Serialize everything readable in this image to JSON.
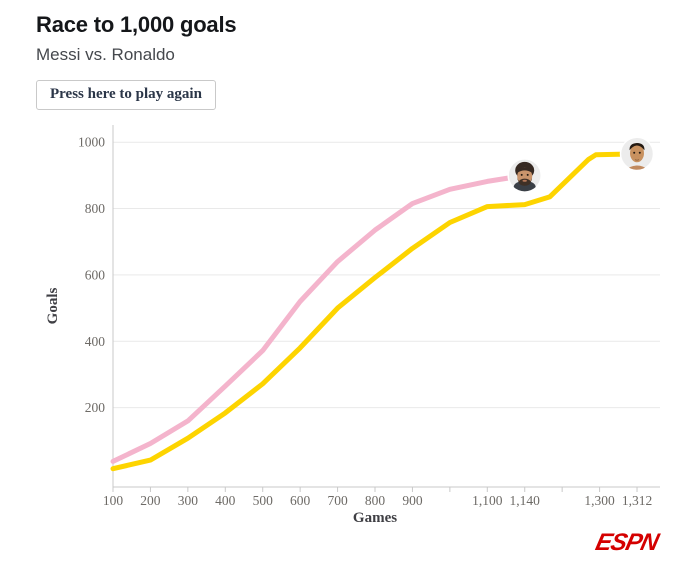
{
  "header": {
    "title": "Race to 1,000 goals",
    "subtitle": "Messi vs. Ronaldo"
  },
  "controls": {
    "play_again_label": "Press here to play again"
  },
  "footer": {
    "logo_text": "ESPN"
  },
  "chart_data": {
    "type": "line",
    "title": "Race to 1,000 goals",
    "xlabel": "Games",
    "ylabel": "Goals",
    "x_tick_values": [
      100,
      200,
      300,
      400,
      500,
      600,
      700,
      800,
      900,
      1000,
      1100,
      1140,
      1200,
      1300,
      1312
    ],
    "x_tick_labels": [
      "100",
      "200",
      "300",
      "400",
      "500",
      "600",
      "700",
      "800",
      "900",
      "",
      "1,100",
      "1,140",
      "",
      "1,300",
      "1,312"
    ],
    "y_ticks": [
      200,
      400,
      600,
      800,
      1000
    ],
    "y_tick_labels": [
      "200",
      "400",
      "600",
      "800",
      "1000"
    ],
    "xlim": [
      100,
      1312
    ],
    "ylim": [
      0,
      1050
    ],
    "grid": "horizontal-only",
    "legend": "none",
    "colors": {
      "messi_line": "#f4b4cc",
      "ronaldo_line": "#fdd400",
      "grid": "#e9e9e9",
      "axis": "#c9c9c9",
      "tick_text": "#6d6a66",
      "axis_label_text": "#3f3f44",
      "logo_red": "#d40000"
    },
    "series": [
      {
        "name": "Messi",
        "color_key": "messi_line",
        "avatar": "messi-avatar",
        "final_games": 1140,
        "final_goals": 900,
        "points": [
          [
            100,
            38
          ],
          [
            200,
            92
          ],
          [
            300,
            160
          ],
          [
            400,
            265
          ],
          [
            500,
            372
          ],
          [
            600,
            520
          ],
          [
            700,
            640
          ],
          [
            800,
            735
          ],
          [
            900,
            815
          ],
          [
            1000,
            858
          ],
          [
            1100,
            882
          ],
          [
            1140,
            900
          ]
        ]
      },
      {
        "name": "Ronaldo",
        "color_key": "ronaldo_line",
        "avatar": "ronaldo-avatar",
        "final_games": 1312,
        "final_goals": 965,
        "points": [
          [
            100,
            16
          ],
          [
            200,
            42
          ],
          [
            300,
            108
          ],
          [
            400,
            184
          ],
          [
            500,
            272
          ],
          [
            600,
            380
          ],
          [
            700,
            500
          ],
          [
            800,
            592
          ],
          [
            900,
            680
          ],
          [
            1000,
            758
          ],
          [
            1100,
            806
          ],
          [
            1140,
            812
          ],
          [
            1180,
            835
          ],
          [
            1270,
            948
          ],
          [
            1290,
            962
          ],
          [
            1312,
            965
          ]
        ]
      }
    ]
  }
}
